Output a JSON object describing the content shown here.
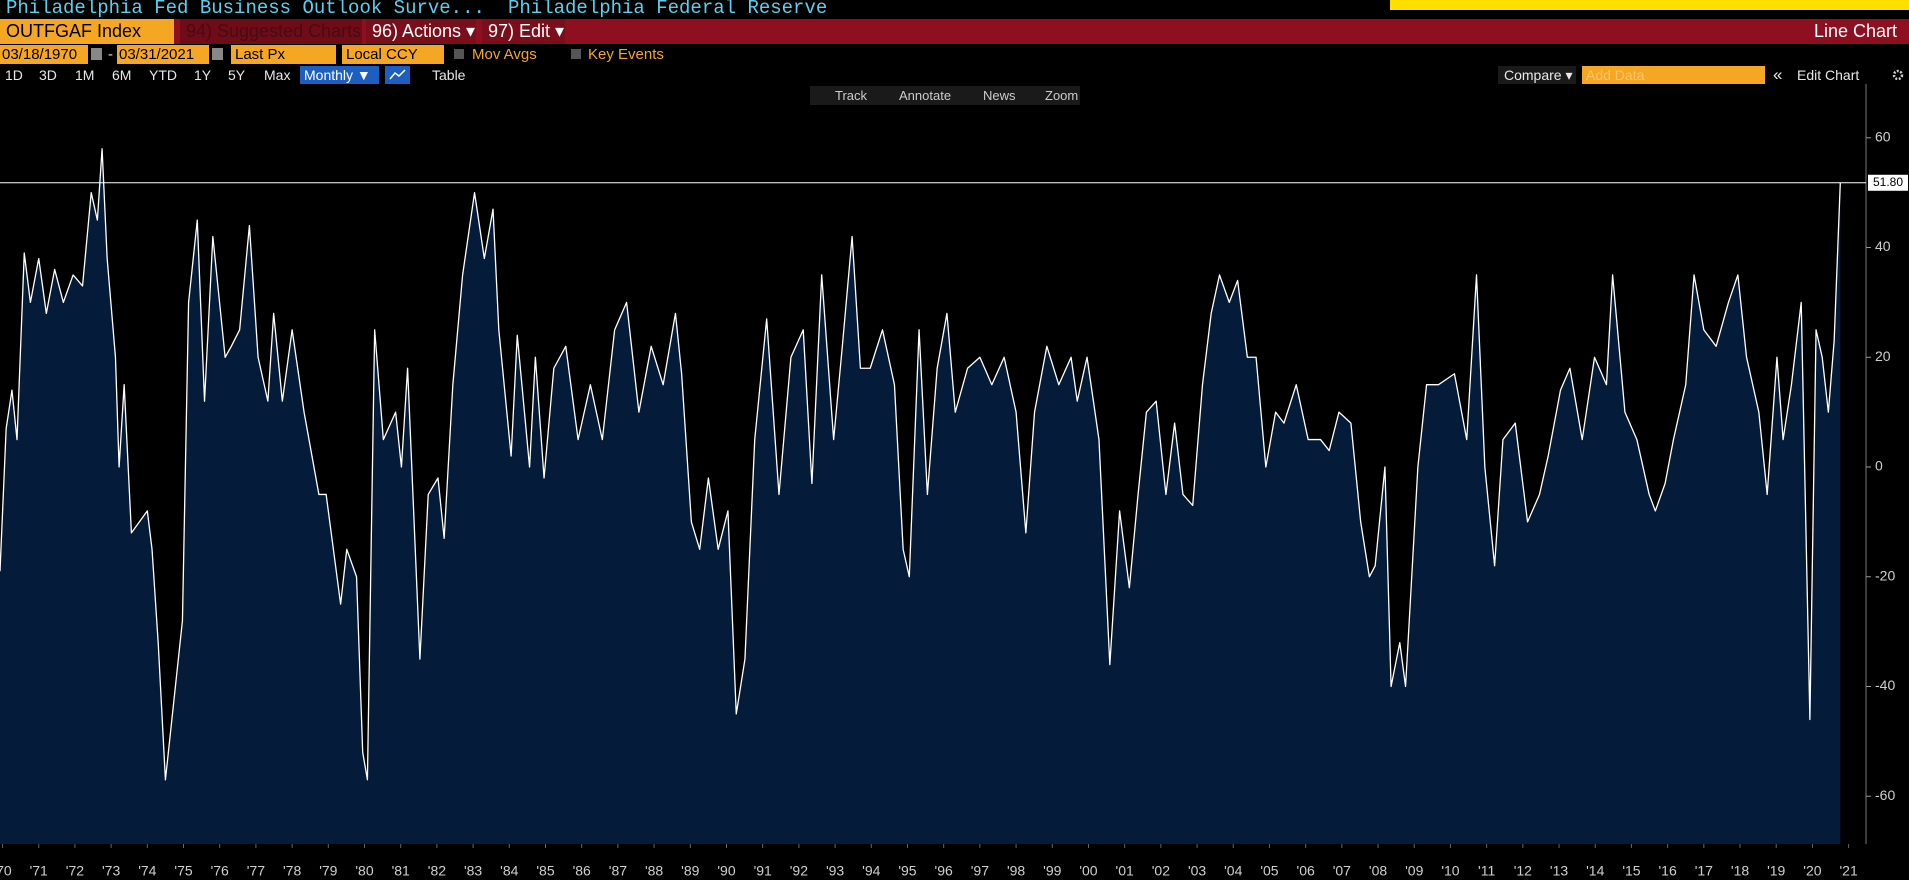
{
  "ui": {
    "title": "Philadelphia Fed Business Outlook Surve...",
    "source": "Philadelphia Federal Reserve",
    "ticker": "OUTFGAF Index",
    "suggested": "94) Suggested Charts",
    "actions": "96) Actions ▾",
    "edit": "97) Edit ▾",
    "chart_kind": "Line Chart",
    "start_date": "03/18/1970",
    "date_sep": "-",
    "end_date": "03/31/2021",
    "field": "Last Px",
    "currency": "Local CCY",
    "mov_avgs": "Mov Avgs",
    "key_events": "Key Events",
    "periods": [
      "1D",
      "3D",
      "1M",
      "6M",
      "YTD",
      "1Y",
      "5Y",
      "Max"
    ],
    "frequency": "Monthly ▼",
    "table": "Table",
    "compare": "Compare ▾",
    "add_data": "Add Data",
    "collapse": "«",
    "edit_chart": "Edit Chart",
    "tools": [
      "Track",
      "Annotate",
      "News",
      "Zoom"
    ]
  },
  "chart_data": {
    "type": "line",
    "color": "#ffffff",
    "fill_color": "#041c3a",
    "x": [
      1970.43,
      1970.6,
      1970.76,
      1970.9,
      1971.1,
      1971.27,
      1971.5,
      1971.71,
      1971.94,
      1972.18,
      1972.45,
      1972.71,
      1972.95,
      1973.12,
      1973.25,
      1973.39,
      1973.62,
      1973.72,
      1973.86,
      1974.06,
      1974.5,
      1974.63,
      1974.8,
      1975.0,
      1975.47,
      1975.64,
      1975.88,
      1976.08,
      1976.31,
      1976.65,
      1976.82,
      1977.05,
      1977.32,
      1977.56,
      1977.83,
      1977.99,
      1978.23,
      1978.5,
      1978.83,
      1979.24,
      1979.44,
      1979.84,
      1980.01,
      1980.28,
      1980.45,
      1980.58,
      1980.78,
      1981.02,
      1981.36,
      1981.52,
      1981.69,
      1982.03,
      1982.26,
      1982.53,
      1982.7,
      1982.94,
      1983.21,
      1983.54,
      1983.81,
      1984.05,
      1984.21,
      1984.55,
      1984.72,
      1985.06,
      1985.22,
      1985.46,
      1985.73,
      1986.06,
      1986.4,
      1986.74,
      1987.07,
      1987.41,
      1987.74,
      1988.08,
      1988.42,
      1988.75,
      1989.09,
      1989.26,
      1989.53,
      1989.76,
      1990.0,
      1990.27,
      1990.54,
      1990.77,
      1991.01,
      1991.28,
      1991.61,
      1991.95,
      1992.28,
      1992.62,
      1992.86,
      1993.13,
      1993.46,
      1993.7,
      1993.97,
      1994.2,
      1994.47,
      1994.81,
      1995.14,
      1995.38,
      1995.55,
      1995.82,
      1996.05,
      1996.32,
      1996.59,
      1996.82,
      1997.16,
      1997.5,
      1997.83,
      1998.17,
      1998.5,
      1998.77,
      1999.01,
      1999.35,
      1999.68,
      2000.02,
      2000.19,
      2000.46,
      2000.79,
      2001.09,
      2001.36,
      2001.63,
      2001.87,
      2002.1,
      2002.37,
      2002.64,
      2002.88,
      2003.11,
      2003.38,
      2003.65,
      2003.89,
      2004.12,
      2004.39,
      2004.62,
      2004.89,
      2005.13,
      2005.4,
      2005.67,
      2005.9,
      2006.24,
      2006.57,
      2006.91,
      2007.15,
      2007.42,
      2007.75,
      2008.02,
      2008.26,
      2008.42,
      2008.69,
      2008.86,
      2009.1,
      2009.26,
      2009.43,
      2009.6,
      2009.84,
      2010.17,
      2010.61,
      2010.95,
      2011.22,
      2011.45,
      2011.72,
      2011.95,
      2012.29,
      2012.63,
      2012.96,
      2013.2,
      2013.54,
      2013.8,
      2014.14,
      2014.48,
      2014.81,
      2014.98,
      2015.32,
      2015.65,
      2015.99,
      2016.16,
      2016.43,
      2016.66,
      2017.0,
      2017.23,
      2017.5,
      2017.84,
      2018.18,
      2018.44,
      2018.68,
      2019.02,
      2019.25,
      2019.52,
      2019.69,
      2019.92,
      2020.19,
      2020.43,
      2020.6,
      2020.77,
      2020.94,
      2021.1,
      2021.27
    ],
    "values": [
      -19,
      7,
      14,
      5,
      39,
      30,
      38,
      28,
      36,
      30,
      35,
      33,
      50,
      45,
      58,
      38,
      20,
      0,
      15,
      -12,
      -8,
      -15,
      -32,
      -57,
      -28,
      30,
      45,
      12,
      42,
      20,
      22,
      25,
      44,
      20,
      12,
      28,
      12,
      25,
      10,
      -5,
      -5,
      -25,
      -15,
      -20,
      -52,
      -57,
      25,
      5,
      10,
      0,
      18,
      -35,
      -5,
      -2,
      -13,
      15,
      35,
      50,
      38,
      47,
      25,
      2,
      24,
      0,
      20,
      -2,
      18,
      22,
      5,
      15,
      5,
      25,
      30,
      10,
      22,
      15,
      28,
      17,
      -10,
      -15,
      -2,
      -15,
      -8,
      -45,
      -35,
      5,
      27,
      -5,
      20,
      25,
      -3,
      35,
      5,
      22,
      42,
      18,
      18,
      25,
      15,
      -15,
      -20,
      25,
      -5,
      18,
      28,
      10,
      18,
      20,
      15,
      20,
      10,
      -12,
      10,
      22,
      15,
      20,
      12,
      20,
      5,
      -36,
      -8,
      -22,
      -5,
      10,
      12,
      -5,
      8,
      -5,
      -7,
      15,
      28,
      35,
      30,
      34,
      20,
      20,
      0,
      10,
      8,
      15,
      5,
      5,
      3,
      10,
      8,
      -10,
      -20,
      -18,
      0,
      -40,
      -32,
      -40,
      -20,
      0,
      15,
      15,
      17,
      5,
      35,
      0,
      -18,
      5,
      8,
      -10,
      -5,
      2,
      14,
      18,
      5,
      20,
      15,
      35,
      10,
      5,
      -5,
      -8,
      -3,
      5,
      15,
      35,
      25,
      22,
      30,
      35,
      20,
      10,
      -5,
      20,
      5,
      15,
      30,
      -46,
      25,
      20,
      10,
      23,
      51.8
    ],
    "xlim": [
      1970.43,
      2021.98
    ],
    "ylim": [
      -68.7,
      69.8
    ],
    "yticks": [
      -60,
      -40,
      -20,
      0,
      20,
      40,
      60
    ],
    "xticks": [
      {
        "value": 1970.5,
        "label": "'70"
      },
      {
        "value": 1971.5,
        "label": "'71"
      },
      {
        "value": 1972.5,
        "label": "'72"
      },
      {
        "value": 1973.5,
        "label": "'73"
      },
      {
        "value": 1974.5,
        "label": "'74"
      },
      {
        "value": 1975.5,
        "label": "'75"
      },
      {
        "value": 1976.5,
        "label": "'76"
      },
      {
        "value": 1977.5,
        "label": "'77"
      },
      {
        "value": 1978.5,
        "label": "'78"
      },
      {
        "value": 1979.5,
        "label": "'79"
      },
      {
        "value": 1980.5,
        "label": "'80"
      },
      {
        "value": 1981.5,
        "label": "'81"
      },
      {
        "value": 1982.5,
        "label": "'82"
      },
      {
        "value": 1983.5,
        "label": "'83"
      },
      {
        "value": 1984.5,
        "label": "'84"
      },
      {
        "value": 1985.5,
        "label": "'85"
      },
      {
        "value": 1986.5,
        "label": "'86"
      },
      {
        "value": 1987.5,
        "label": "'87"
      },
      {
        "value": 1988.5,
        "label": "'88"
      },
      {
        "value": 1989.5,
        "label": "'89"
      },
      {
        "value": 1990.5,
        "label": "'90"
      },
      {
        "value": 1991.5,
        "label": "'91"
      },
      {
        "value": 1992.5,
        "label": "'92"
      },
      {
        "value": 1993.5,
        "label": "'93"
      },
      {
        "value": 1994.5,
        "label": "'94"
      },
      {
        "value": 1995.5,
        "label": "'95"
      },
      {
        "value": 1996.5,
        "label": "'96"
      },
      {
        "value": 1997.5,
        "label": "'97"
      },
      {
        "value": 1998.5,
        "label": "'98"
      },
      {
        "value": 1999.5,
        "label": "'99"
      },
      {
        "value": 2000.5,
        "label": "'00"
      },
      {
        "value": 2001.5,
        "label": "'01"
      },
      {
        "value": 2002.5,
        "label": "'02"
      },
      {
        "value": 2003.5,
        "label": "'03"
      },
      {
        "value": 2004.5,
        "label": "'04"
      },
      {
        "value": 2005.5,
        "label": "'05"
      },
      {
        "value": 2006.5,
        "label": "'06"
      },
      {
        "value": 2007.5,
        "label": "'07"
      },
      {
        "value": 2008.5,
        "label": "'08"
      },
      {
        "value": 2009.5,
        "label": "'09"
      },
      {
        "value": 2010.5,
        "label": "'10"
      },
      {
        "value": 2011.5,
        "label": "'11"
      },
      {
        "value": 2012.5,
        "label": "'12"
      },
      {
        "value": 2013.5,
        "label": "'13"
      },
      {
        "value": 2014.5,
        "label": "'14"
      },
      {
        "value": 2015.5,
        "label": "'15"
      },
      {
        "value": 2016.5,
        "label": "'16"
      },
      {
        "value": 2017.5,
        "label": "'17"
      },
      {
        "value": 2018.5,
        "label": "'18"
      },
      {
        "value": 2019.5,
        "label": "'19"
      },
      {
        "value": 2020.5,
        "label": "'20"
      },
      {
        "value": 2021.5,
        "label": "'21"
      }
    ],
    "last_value": {
      "value": 51.8,
      "label": "51.80"
    }
  }
}
